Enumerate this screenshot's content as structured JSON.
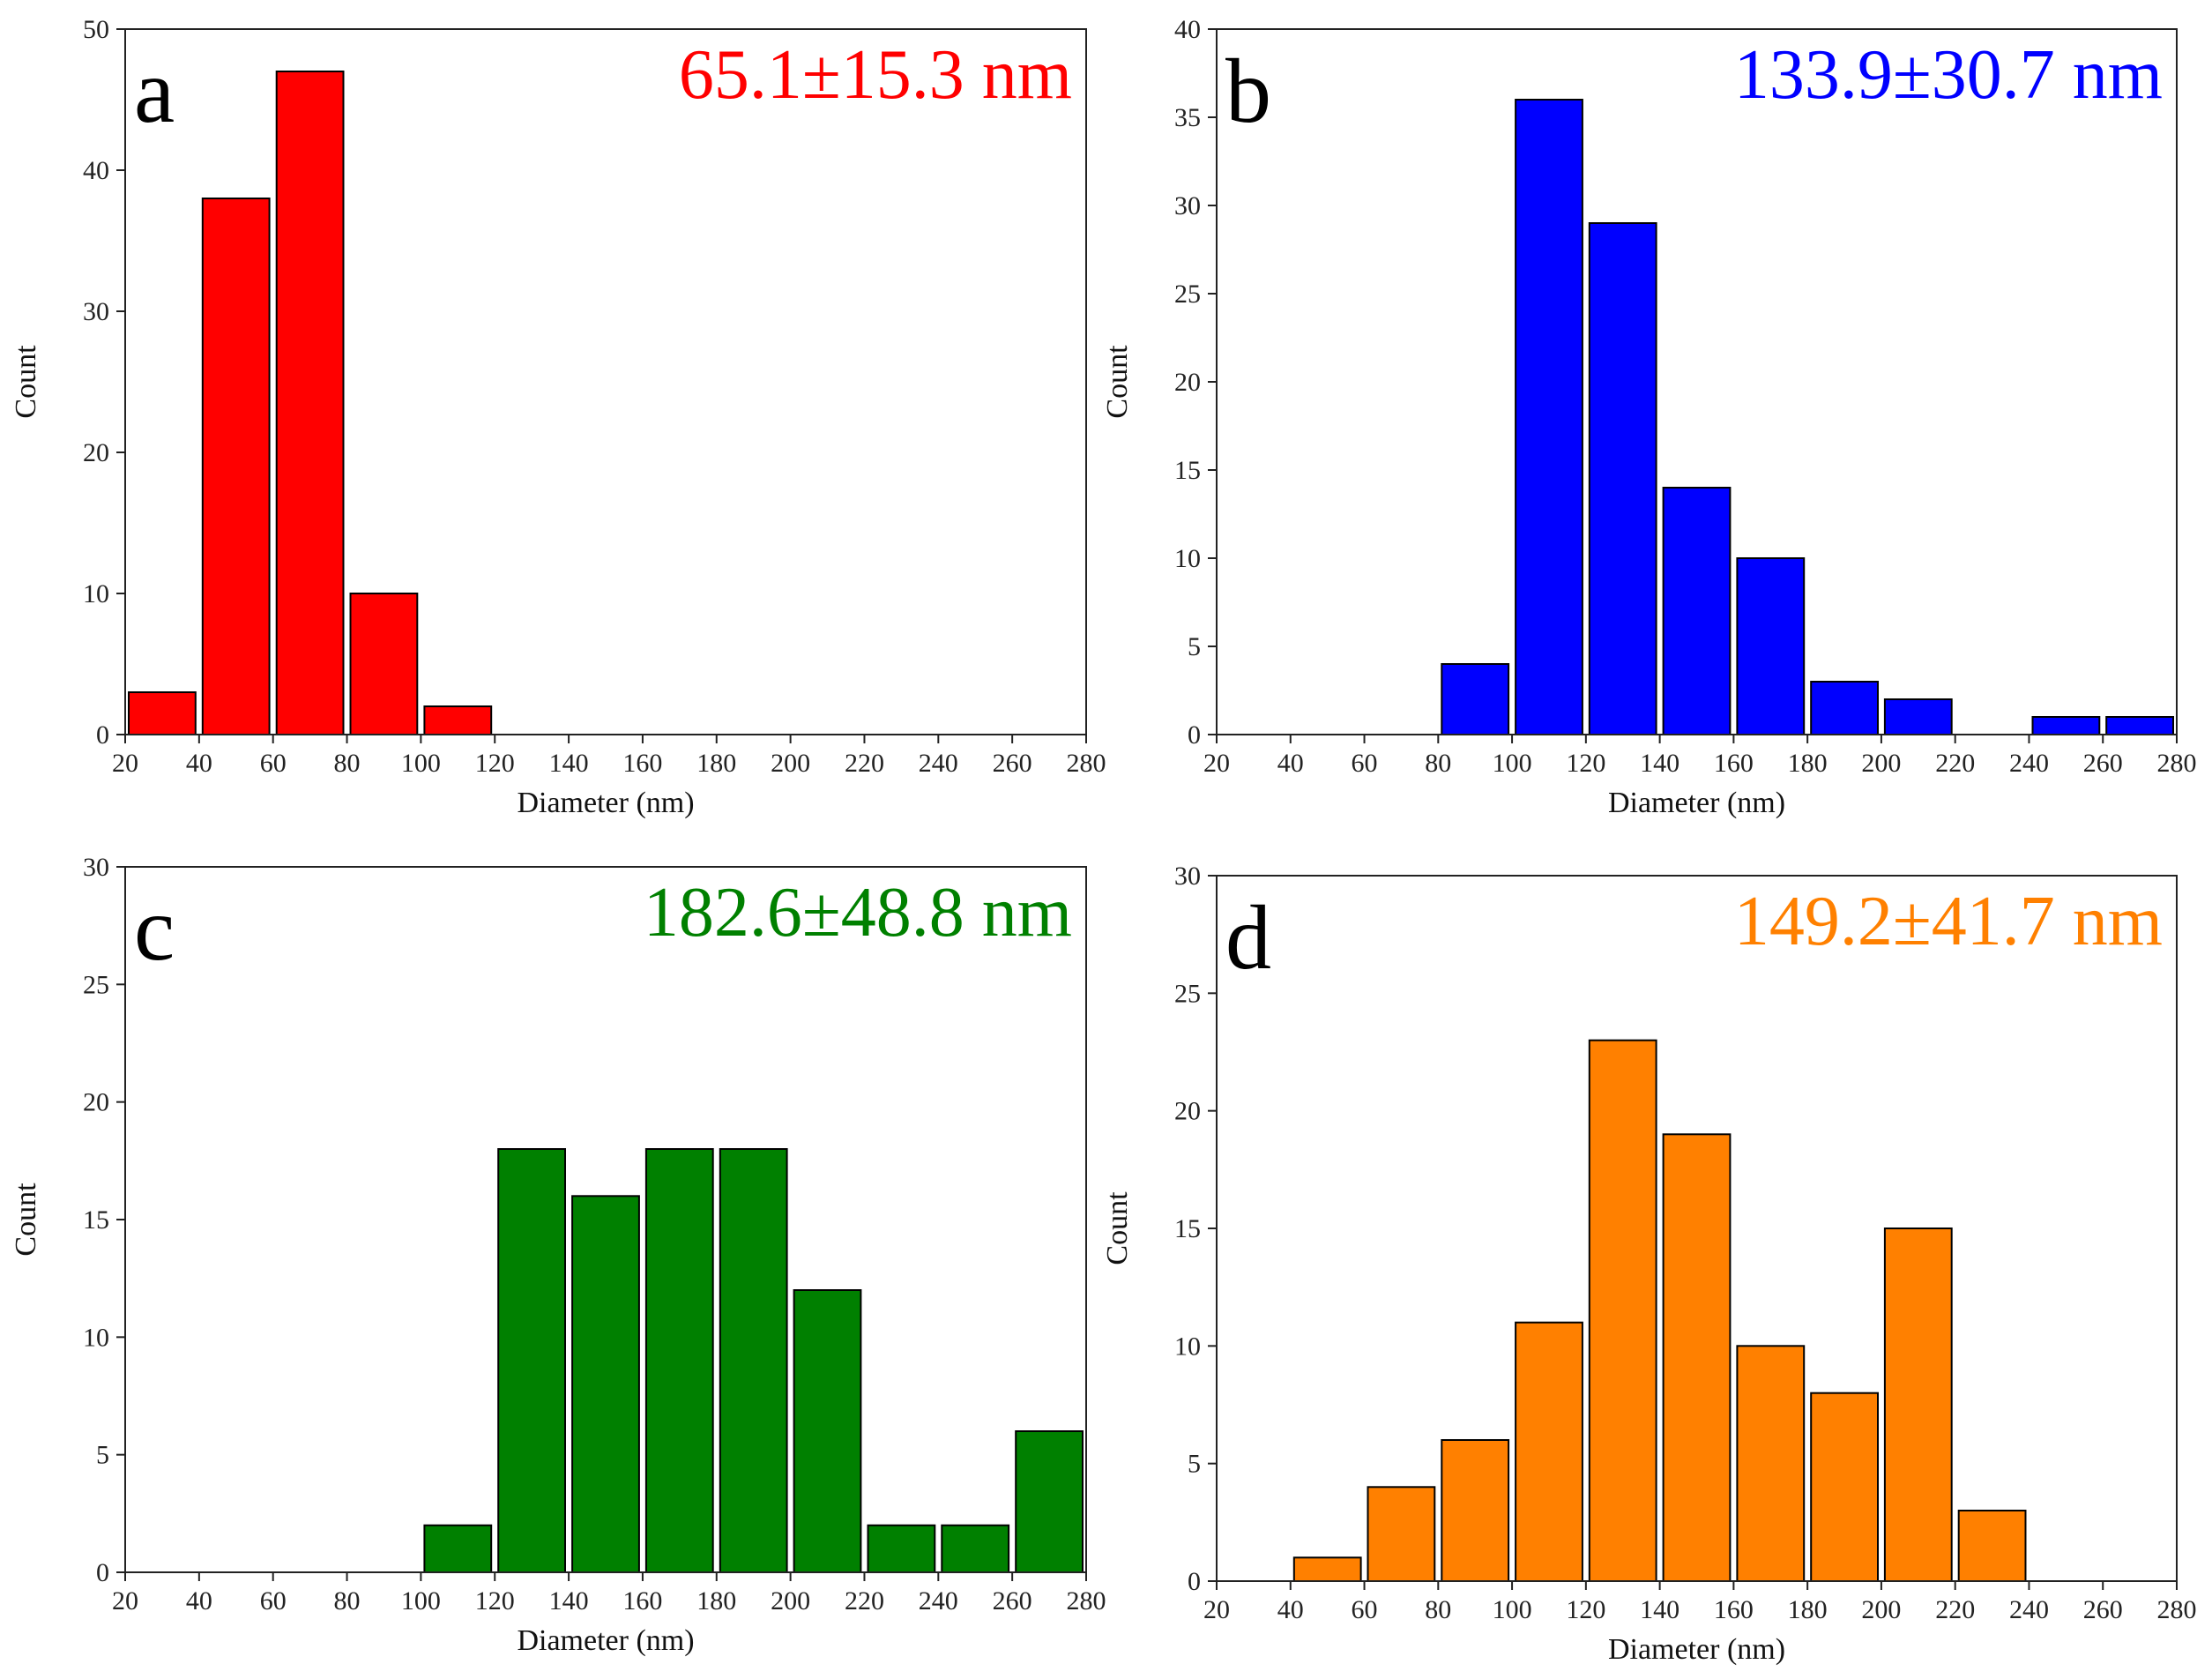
{
  "chart_data": [
    {
      "type": "bar",
      "panel": "a",
      "annotation": "65.1±15.3 nm",
      "color": "#ff0000",
      "xlabel": "Diameter (nm)",
      "ylabel": "Count",
      "xlim": [
        20,
        280
      ],
      "ylim": [
        0,
        50
      ],
      "xticks": [
        20,
        40,
        60,
        80,
        100,
        120,
        140,
        160,
        180,
        200,
        220,
        240,
        260,
        280
      ],
      "yticks": [
        0,
        10,
        20,
        30,
        40,
        50
      ],
      "bins": [
        {
          "x0": 20,
          "x1": 40,
          "count": 3
        },
        {
          "x0": 40,
          "x1": 60,
          "count": 38
        },
        {
          "x0": 60,
          "x1": 80,
          "count": 47
        },
        {
          "x0": 80,
          "x1": 100,
          "count": 10
        },
        {
          "x0": 100,
          "x1": 120,
          "count": 2
        }
      ]
    },
    {
      "type": "bar",
      "panel": "b",
      "annotation": "133.9±30.7 nm",
      "color": "#0000ff",
      "xlabel": "Diameter (nm)",
      "ylabel": "Count",
      "xlim": [
        20,
        280
      ],
      "ylim": [
        0,
        40
      ],
      "xticks": [
        20,
        40,
        60,
        80,
        100,
        120,
        140,
        160,
        180,
        200,
        220,
        240,
        260,
        280
      ],
      "yticks": [
        0,
        5,
        10,
        15,
        20,
        25,
        30,
        35,
        40
      ],
      "bins": [
        {
          "x0": 80,
          "x1": 100,
          "count": 4
        },
        {
          "x0": 100,
          "x1": 120,
          "count": 36
        },
        {
          "x0": 120,
          "x1": 140,
          "count": 29
        },
        {
          "x0": 140,
          "x1": 160,
          "count": 14
        },
        {
          "x0": 160,
          "x1": 180,
          "count": 10
        },
        {
          "x0": 180,
          "x1": 200,
          "count": 3
        },
        {
          "x0": 200,
          "x1": 220,
          "count": 2
        },
        {
          "x0": 240,
          "x1": 260,
          "count": 1
        },
        {
          "x0": 260,
          "x1": 280,
          "count": 1
        }
      ]
    },
    {
      "type": "bar",
      "panel": "c",
      "annotation": "182.6±48.8 nm",
      "color": "#008000",
      "xlabel": "Diameter (nm)",
      "ylabel": "Count",
      "xlim": [
        20,
        280
      ],
      "ylim": [
        0,
        30
      ],
      "xticks": [
        20,
        40,
        60,
        80,
        100,
        120,
        140,
        160,
        180,
        200,
        220,
        240,
        260,
        280
      ],
      "yticks": [
        0,
        5,
        10,
        15,
        20,
        25,
        30
      ],
      "bins": [
        {
          "x0": 100,
          "x1": 120,
          "count": 2
        },
        {
          "x0": 120,
          "x1": 140,
          "count": 18
        },
        {
          "x0": 140,
          "x1": 160,
          "count": 16
        },
        {
          "x0": 160,
          "x1": 180,
          "count": 18
        },
        {
          "x0": 180,
          "x1": 200,
          "count": 18
        },
        {
          "x0": 200,
          "x1": 220,
          "count": 12
        },
        {
          "x0": 220,
          "x1": 240,
          "count": 2
        },
        {
          "x0": 240,
          "x1": 260,
          "count": 2
        },
        {
          "x0": 260,
          "x1": 280,
          "count": 6
        }
      ]
    },
    {
      "type": "bar",
      "panel": "d",
      "annotation": "149.2±41.7 nm",
      "color": "#ff8000",
      "xlabel": "Diameter (nm)",
      "ylabel": "Count",
      "xlim": [
        20,
        280
      ],
      "ylim": [
        0,
        30
      ],
      "xticks": [
        20,
        40,
        60,
        80,
        100,
        120,
        140,
        160,
        180,
        200,
        220,
        240,
        260,
        280
      ],
      "yticks": [
        0,
        5,
        10,
        15,
        20,
        25,
        30
      ],
      "bins": [
        {
          "x0": 40,
          "x1": 60,
          "count": 1
        },
        {
          "x0": 60,
          "x1": 80,
          "count": 4
        },
        {
          "x0": 80,
          "x1": 100,
          "count": 6
        },
        {
          "x0": 100,
          "x1": 120,
          "count": 11
        },
        {
          "x0": 120,
          "x1": 140,
          "count": 23
        },
        {
          "x0": 140,
          "x1": 160,
          "count": 19
        },
        {
          "x0": 160,
          "x1": 180,
          "count": 10
        },
        {
          "x0": 180,
          "x1": 200,
          "count": 8
        },
        {
          "x0": 200,
          "x1": 220,
          "count": 15
        },
        {
          "x0": 220,
          "x1": 240,
          "count": 3
        }
      ]
    }
  ]
}
